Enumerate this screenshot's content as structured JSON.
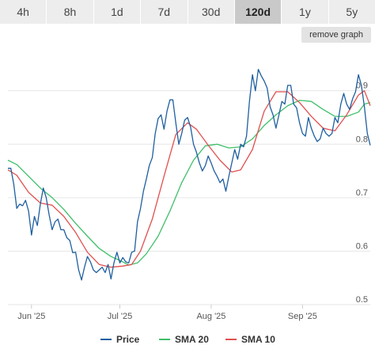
{
  "tabs": [
    {
      "label": "4h",
      "active": false
    },
    {
      "label": "8h",
      "active": false
    },
    {
      "label": "1d",
      "active": false
    },
    {
      "label": "7d",
      "active": false
    },
    {
      "label": "30d",
      "active": false
    },
    {
      "label": "120d",
      "active": true
    },
    {
      "label": "1y",
      "active": false
    },
    {
      "label": "5y",
      "active": false
    }
  ],
  "remove_button": "remove graph",
  "chart_data": {
    "type": "line",
    "x_start": "2025-05-24",
    "x_end": "2025-09-24",
    "ylim": [
      0.5,
      0.975
    ],
    "y_ticks": [
      {
        "value": 0.9,
        "label": "0.9"
      },
      {
        "value": 0.8,
        "label": "0.8"
      },
      {
        "value": 0.7,
        "label": "0.7"
      },
      {
        "value": 0.6,
        "label": "0.6"
      },
      {
        "value": 0.5,
        "label": "0.5"
      }
    ],
    "x_ticks": [
      {
        "date": "2025-06-01",
        "label": "Jun '25"
      },
      {
        "date": "2025-07-01",
        "label": "Jul '25"
      },
      {
        "date": "2025-08-01",
        "label": "Aug '25"
      },
      {
        "date": "2025-09-01",
        "label": "Sep '25"
      }
    ],
    "grid": true,
    "legend_position": "bottom",
    "series": [
      {
        "name": "Price",
        "color": "#1f5fa0",
        "points": [
          [
            "2025-05-24",
            0.755
          ],
          [
            "2025-05-25",
            0.755
          ],
          [
            "2025-05-26",
            0.725
          ],
          [
            "2025-05-27",
            0.68
          ],
          [
            "2025-05-28",
            0.688
          ],
          [
            "2025-05-29",
            0.685
          ],
          [
            "2025-05-30",
            0.695
          ],
          [
            "2025-05-31",
            0.675
          ],
          [
            "2025-06-01",
            0.63
          ],
          [
            "2025-06-02",
            0.665
          ],
          [
            "2025-06-03",
            0.648
          ],
          [
            "2025-06-04",
            0.688
          ],
          [
            "2025-06-05",
            0.718
          ],
          [
            "2025-06-06",
            0.7
          ],
          [
            "2025-06-07",
            0.668
          ],
          [
            "2025-06-08",
            0.64
          ],
          [
            "2025-06-09",
            0.655
          ],
          [
            "2025-06-10",
            0.66
          ],
          [
            "2025-06-11",
            0.64
          ],
          [
            "2025-06-12",
            0.64
          ],
          [
            "2025-06-13",
            0.625
          ],
          [
            "2025-06-14",
            0.62
          ],
          [
            "2025-06-15",
            0.597
          ],
          [
            "2025-06-16",
            0.598
          ],
          [
            "2025-06-17",
            0.565
          ],
          [
            "2025-06-18",
            0.546
          ],
          [
            "2025-06-19",
            0.57
          ],
          [
            "2025-06-20",
            0.59
          ],
          [
            "2025-06-21",
            0.58
          ],
          [
            "2025-06-22",
            0.565
          ],
          [
            "2025-06-23",
            0.56
          ],
          [
            "2025-06-24",
            0.565
          ],
          [
            "2025-06-25",
            0.57
          ],
          [
            "2025-06-26",
            0.56
          ],
          [
            "2025-06-27",
            0.575
          ],
          [
            "2025-06-28",
            0.548
          ],
          [
            "2025-06-29",
            0.578
          ],
          [
            "2025-06-30",
            0.598
          ],
          [
            "2025-07-01",
            0.578
          ],
          [
            "2025-07-02",
            0.588
          ],
          [
            "2025-07-03",
            0.58
          ],
          [
            "2025-07-04",
            0.578
          ],
          [
            "2025-07-05",
            0.598
          ],
          [
            "2025-07-06",
            0.6
          ],
          [
            "2025-07-07",
            0.655
          ],
          [
            "2025-07-08",
            0.68
          ],
          [
            "2025-07-09",
            0.712
          ],
          [
            "2025-07-10",
            0.735
          ],
          [
            "2025-07-11",
            0.76
          ],
          [
            "2025-07-12",
            0.775
          ],
          [
            "2025-07-13",
            0.82
          ],
          [
            "2025-07-14",
            0.848
          ],
          [
            "2025-07-15",
            0.855
          ],
          [
            "2025-07-16",
            0.828
          ],
          [
            "2025-07-17",
            0.862
          ],
          [
            "2025-07-18",
            0.883
          ],
          [
            "2025-07-19",
            0.883
          ],
          [
            "2025-07-20",
            0.84
          ],
          [
            "2025-07-21",
            0.8
          ],
          [
            "2025-07-22",
            0.82
          ],
          [
            "2025-07-23",
            0.845
          ],
          [
            "2025-07-24",
            0.85
          ],
          [
            "2025-07-25",
            0.832
          ],
          [
            "2025-07-26",
            0.8
          ],
          [
            "2025-07-27",
            0.785
          ],
          [
            "2025-07-28",
            0.765
          ],
          [
            "2025-07-29",
            0.75
          ],
          [
            "2025-07-30",
            0.76
          ],
          [
            "2025-07-31",
            0.778
          ],
          [
            "2025-08-01",
            0.765
          ],
          [
            "2025-08-02",
            0.75
          ],
          [
            "2025-08-03",
            0.74
          ],
          [
            "2025-08-04",
            0.728
          ],
          [
            "2025-08-05",
            0.735
          ],
          [
            "2025-08-06",
            0.712
          ],
          [
            "2025-08-07",
            0.74
          ],
          [
            "2025-08-08",
            0.765
          ],
          [
            "2025-08-09",
            0.79
          ],
          [
            "2025-08-10",
            0.772
          ],
          [
            "2025-08-11",
            0.8
          ],
          [
            "2025-08-12",
            0.795
          ],
          [
            "2025-08-13",
            0.815
          ],
          [
            "2025-08-14",
            0.88
          ],
          [
            "2025-08-15",
            0.93
          ],
          [
            "2025-08-16",
            0.9
          ],
          [
            "2025-08-17",
            0.94
          ],
          [
            "2025-08-18",
            0.928
          ],
          [
            "2025-08-19",
            0.918
          ],
          [
            "2025-08-20",
            0.905
          ],
          [
            "2025-08-21",
            0.87
          ],
          [
            "2025-08-22",
            0.855
          ],
          [
            "2025-08-23",
            0.83
          ],
          [
            "2025-08-24",
            0.855
          ],
          [
            "2025-08-25",
            0.88
          ],
          [
            "2025-08-26",
            0.875
          ],
          [
            "2025-08-27",
            0.91
          ],
          [
            "2025-08-28",
            0.91
          ],
          [
            "2025-08-29",
            0.875
          ],
          [
            "2025-08-30",
            0.868
          ],
          [
            "2025-08-31",
            0.84
          ],
          [
            "2025-09-01",
            0.82
          ],
          [
            "2025-09-02",
            0.815
          ],
          [
            "2025-09-03",
            0.85
          ],
          [
            "2025-09-04",
            0.83
          ],
          [
            "2025-09-05",
            0.815
          ],
          [
            "2025-09-06",
            0.805
          ],
          [
            "2025-09-07",
            0.81
          ],
          [
            "2025-09-08",
            0.83
          ],
          [
            "2025-09-09",
            0.82
          ],
          [
            "2025-09-10",
            0.815
          ],
          [
            "2025-09-11",
            0.82
          ],
          [
            "2025-09-12",
            0.85
          ],
          [
            "2025-09-13",
            0.84
          ],
          [
            "2025-09-14",
            0.875
          ],
          [
            "2025-09-15",
            0.895
          ],
          [
            "2025-09-16",
            0.875
          ],
          [
            "2025-09-17",
            0.865
          ],
          [
            "2025-09-18",
            0.885
          ],
          [
            "2025-09-19",
            0.898
          ],
          [
            "2025-09-20",
            0.93
          ],
          [
            "2025-09-21",
            0.91
          ],
          [
            "2025-09-22",
            0.87
          ],
          [
            "2025-09-23",
            0.82
          ],
          [
            "2025-09-24",
            0.798
          ]
        ]
      },
      {
        "name": "SMA 20",
        "color": "#3fbf6a",
        "points": [
          [
            "2025-05-24",
            0.77
          ],
          [
            "2025-05-27",
            0.762
          ],
          [
            "2025-05-31",
            0.74
          ],
          [
            "2025-06-04",
            0.718
          ],
          [
            "2025-06-08",
            0.7
          ],
          [
            "2025-06-12",
            0.678
          ],
          [
            "2025-06-16",
            0.652
          ],
          [
            "2025-06-20",
            0.628
          ],
          [
            "2025-06-24",
            0.605
          ],
          [
            "2025-06-28",
            0.59
          ],
          [
            "2025-07-02",
            0.58
          ],
          [
            "2025-07-04",
            0.574
          ],
          [
            "2025-07-07",
            0.578
          ],
          [
            "2025-07-10",
            0.595
          ],
          [
            "2025-07-14",
            0.628
          ],
          [
            "2025-07-18",
            0.675
          ],
          [
            "2025-07-22",
            0.728
          ],
          [
            "2025-07-26",
            0.77
          ],
          [
            "2025-07-30",
            0.797
          ],
          [
            "2025-08-03",
            0.8
          ],
          [
            "2025-08-07",
            0.793
          ],
          [
            "2025-08-11",
            0.795
          ],
          [
            "2025-08-15",
            0.81
          ],
          [
            "2025-08-19",
            0.835
          ],
          [
            "2025-08-23",
            0.855
          ],
          [
            "2025-08-27",
            0.872
          ],
          [
            "2025-08-31",
            0.882
          ],
          [
            "2025-09-04",
            0.88
          ],
          [
            "2025-09-08",
            0.865
          ],
          [
            "2025-09-12",
            0.852
          ],
          [
            "2025-09-16",
            0.852
          ],
          [
            "2025-09-20",
            0.86
          ],
          [
            "2025-09-22",
            0.875
          ],
          [
            "2025-09-24",
            0.878
          ]
        ]
      },
      {
        "name": "SMA 10",
        "color": "#e05050",
        "points": [
          [
            "2025-05-24",
            0.752
          ],
          [
            "2025-05-27",
            0.742
          ],
          [
            "2025-05-31",
            0.71
          ],
          [
            "2025-06-04",
            0.69
          ],
          [
            "2025-06-08",
            0.686
          ],
          [
            "2025-06-12",
            0.665
          ],
          [
            "2025-06-16",
            0.635
          ],
          [
            "2025-06-20",
            0.598
          ],
          [
            "2025-06-24",
            0.575
          ],
          [
            "2025-06-28",
            0.57
          ],
          [
            "2025-07-02",
            0.572
          ],
          [
            "2025-07-05",
            0.575
          ],
          [
            "2025-07-08",
            0.6
          ],
          [
            "2025-07-12",
            0.66
          ],
          [
            "2025-07-16",
            0.74
          ],
          [
            "2025-07-20",
            0.818
          ],
          [
            "2025-07-24",
            0.84
          ],
          [
            "2025-07-27",
            0.828
          ],
          [
            "2025-07-31",
            0.798
          ],
          [
            "2025-08-04",
            0.77
          ],
          [
            "2025-08-08",
            0.748
          ],
          [
            "2025-08-11",
            0.752
          ],
          [
            "2025-08-15",
            0.79
          ],
          [
            "2025-08-19",
            0.862
          ],
          [
            "2025-08-23",
            0.898
          ],
          [
            "2025-08-27",
            0.898
          ],
          [
            "2025-08-31",
            0.878
          ],
          [
            "2025-09-04",
            0.852
          ],
          [
            "2025-09-08",
            0.83
          ],
          [
            "2025-09-12",
            0.825
          ],
          [
            "2025-09-16",
            0.855
          ],
          [
            "2025-09-20",
            0.892
          ],
          [
            "2025-09-22",
            0.9
          ],
          [
            "2025-09-24",
            0.872
          ]
        ]
      }
    ]
  }
}
